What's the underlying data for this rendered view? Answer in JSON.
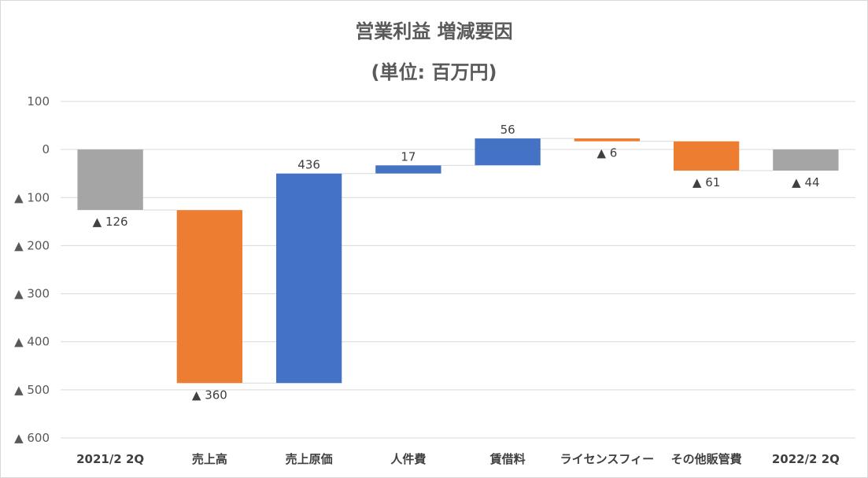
{
  "chart_data": {
    "type": "bar",
    "subtype": "waterfall",
    "title": "営業利益 増減要因",
    "subtitle": "(単位: 百万円)",
    "y_tick_labels": [
      "100",
      "0",
      "▲ 100",
      "▲ 200",
      "▲ 300",
      "▲ 400",
      "▲ 500",
      "▲ 600"
    ],
    "ylim": [
      -600,
      100
    ],
    "y_ticks": [
      100,
      0,
      -100,
      -200,
      -300,
      -400,
      -500,
      -600
    ],
    "grid": true,
    "legend": "none",
    "categories": [
      "2021/2 2Q",
      "売上高",
      "売上原価",
      "人件費",
      "賃借料",
      "ライセンスフィー",
      "その他販管費",
      "2022/2 2Q"
    ],
    "bars": [
      {
        "kind": "total",
        "start": 0,
        "end": -126,
        "label": "▲ 126",
        "color": "#a5a5a5"
      },
      {
        "kind": "decrease",
        "start": -126,
        "end": -486,
        "label": "▲ 360",
        "color": "#ed7d31"
      },
      {
        "kind": "increase",
        "start": -486,
        "end": -50,
        "label": "436",
        "color": "#4472c4"
      },
      {
        "kind": "increase",
        "start": -50,
        "end": -33,
        "label": "17",
        "color": "#4472c4"
      },
      {
        "kind": "increase",
        "start": -33,
        "end": 23,
        "label": "56",
        "color": "#4472c4"
      },
      {
        "kind": "decrease",
        "start": 23,
        "end": 17,
        "label": "▲ 6",
        "color": "#ed7d31"
      },
      {
        "kind": "decrease",
        "start": 17,
        "end": -44,
        "label": "▲ 61",
        "color": "#ed7d31"
      },
      {
        "kind": "total",
        "start": 0,
        "end": -44,
        "label": "▲ 44",
        "color": "#a5a5a5"
      }
    ],
    "colors": {
      "increase": "#4472c4",
      "decrease": "#ed7d31",
      "total": "#a5a5a5",
      "grid": "#d9d9d9",
      "connector": "#d9d9d9"
    }
  }
}
